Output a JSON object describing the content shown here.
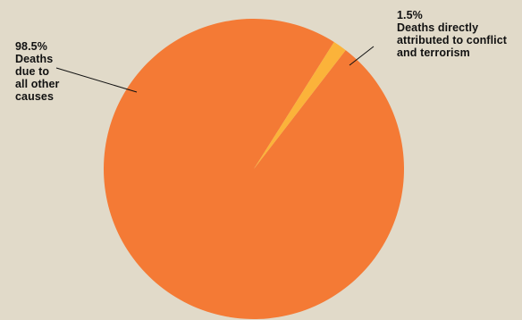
{
  "chart_data": {
    "type": "pie",
    "title": "",
    "slices": [
      {
        "label": "Deaths due to all other causes",
        "value": 98.5,
        "value_label": "98.5%",
        "label_lines": [
          "Deaths",
          "due to",
          "all other",
          "causes"
        ],
        "color": "#f47a35"
      },
      {
        "label": "Deaths directly attributed to conflict and terrorism",
        "value": 1.5,
        "value_label": "1.5%",
        "label_lines": [
          "Deaths directly",
          "attributed to conflict",
          "and terrorism"
        ],
        "color": "#fbb33a"
      }
    ],
    "legend": "none",
    "background": "#e1dac9"
  }
}
